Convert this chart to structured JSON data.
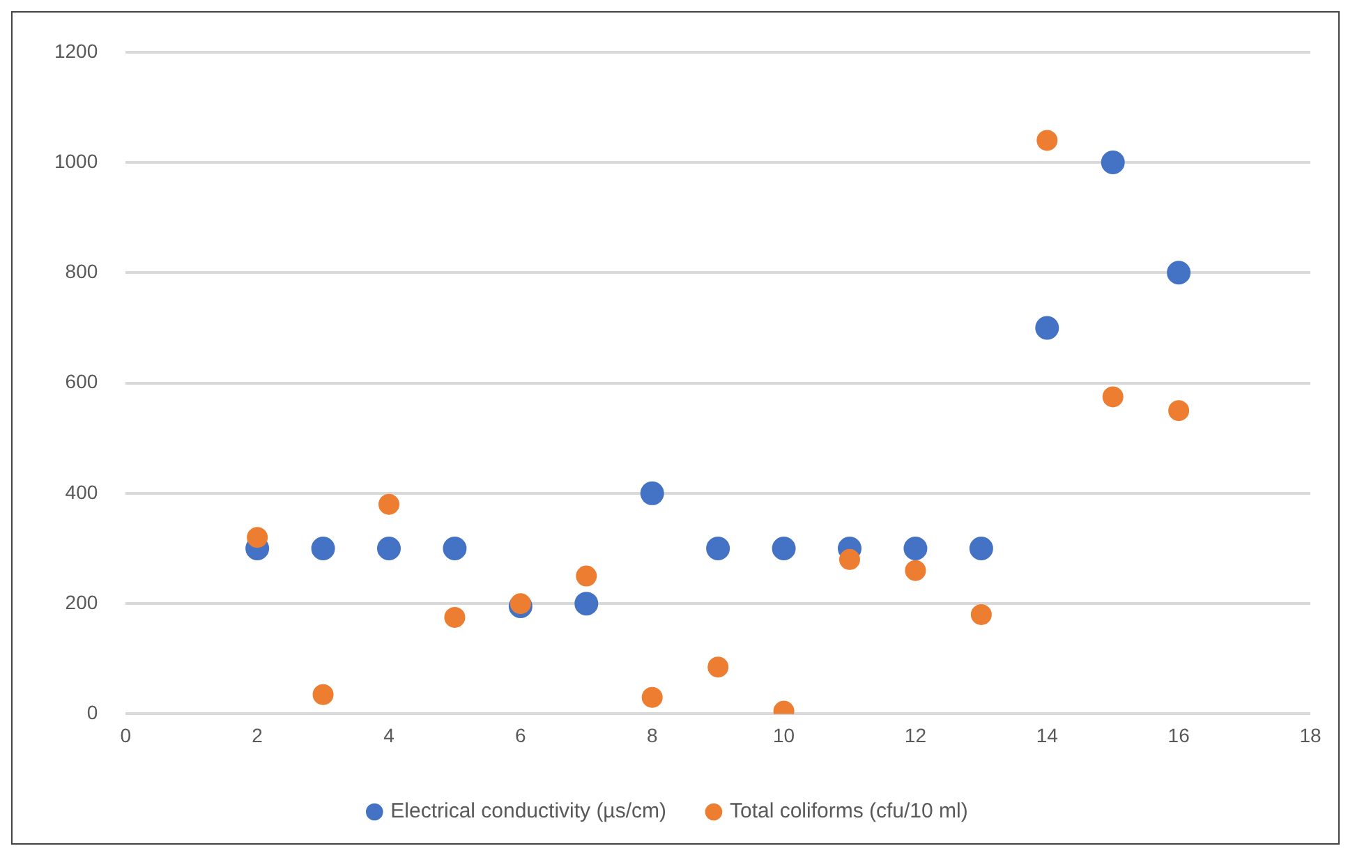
{
  "chart_data": {
    "type": "scatter",
    "x": [
      2,
      3,
      4,
      5,
      6,
      7,
      8,
      9,
      10,
      11,
      12,
      13,
      14,
      15,
      16
    ],
    "series": [
      {
        "name": "Electrical conductivity (µs/cm)",
        "color": "#4472c4",
        "values": [
          300,
          300,
          300,
          300,
          195,
          200,
          400,
          300,
          300,
          300,
          300,
          300,
          700,
          1000,
          800
        ]
      },
      {
        "name": "Total coliforms (cfu/10 ml)",
        "color": "#ed7d31",
        "values": [
          320,
          35,
          380,
          175,
          200,
          250,
          30,
          85,
          5,
          280,
          260,
          180,
          1040,
          575,
          550
        ]
      }
    ],
    "xlim": [
      0,
      18
    ],
    "xticks": [
      0,
      2,
      4,
      6,
      8,
      10,
      12,
      14,
      16,
      18
    ],
    "ylim": [
      0,
      1200
    ],
    "yticks": [
      0,
      200,
      400,
      600,
      800,
      1000,
      1200
    ],
    "grid": "y",
    "legend": "bottom",
    "marker": "circle"
  }
}
